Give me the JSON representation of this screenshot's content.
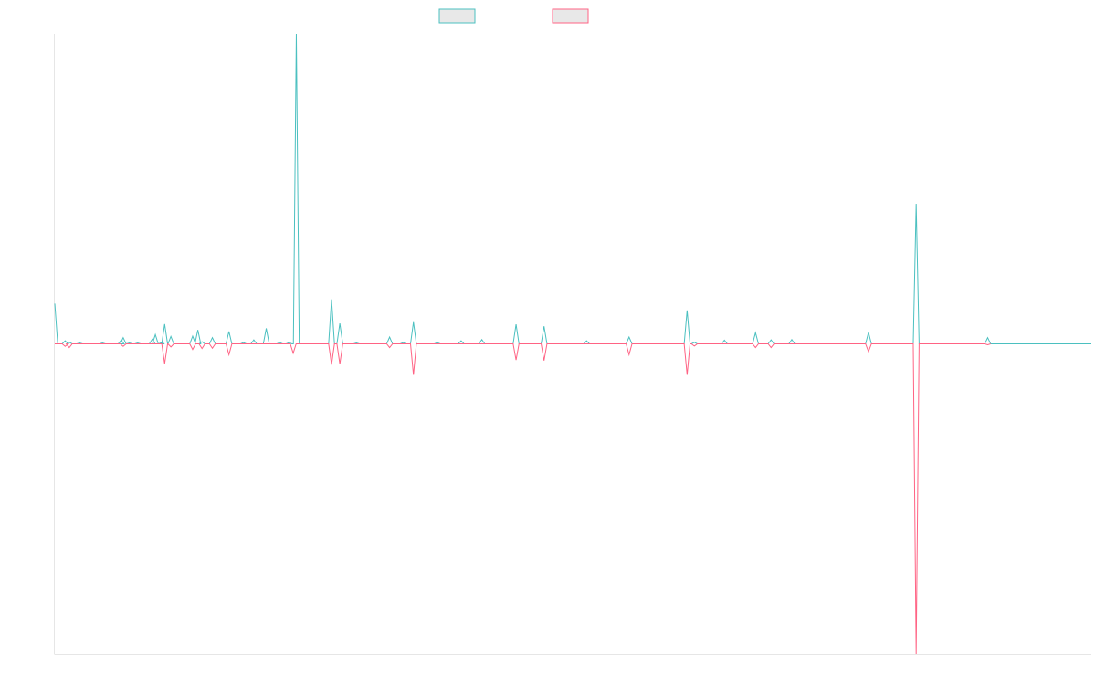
{
  "chart_data": {
    "type": "line",
    "title": "",
    "xlabel": "",
    "ylabel": "",
    "grid": false,
    "legend_position": "top-center",
    "xlim": [
      0,
      100
    ],
    "ylim": [
      -1,
      1
    ],
    "baseline": 0,
    "series": [
      {
        "color": "#4bc0c0",
        "fill": "#e8e8e8",
        "points": [
          [
            0,
            0.13
          ],
          [
            0.3,
            0
          ],
          [
            1.0,
            0.01
          ],
          [
            1.4,
            0.005
          ],
          [
            2.4,
            0.003
          ],
          [
            4.6,
            0.003
          ],
          [
            6.4,
            0.012
          ],
          [
            6.6,
            0.02
          ],
          [
            7.2,
            0.003
          ],
          [
            8.0,
            0.003
          ],
          [
            9.4,
            0.015
          ],
          [
            9.7,
            0.03
          ],
          [
            10.3,
            0.004
          ],
          [
            10.6,
            0.064
          ],
          [
            11.2,
            0.024
          ],
          [
            13.3,
            0.025
          ],
          [
            13.8,
            0.045
          ],
          [
            14.2,
            0.007
          ],
          [
            15.2,
            0.02
          ],
          [
            16.8,
            0.04
          ],
          [
            18.2,
            0.004
          ],
          [
            19.2,
            0.013
          ],
          [
            20.4,
            0.05
          ],
          [
            21.7,
            0.004
          ],
          [
            22.6,
            0.004
          ],
          [
            23.3,
            1.0
          ],
          [
            26.7,
            0.144
          ],
          [
            27.5,
            0.066
          ],
          [
            29.1,
            0.003
          ],
          [
            32.3,
            0.022
          ],
          [
            33.6,
            0.004
          ],
          [
            34.6,
            0.07
          ],
          [
            36.9,
            0.004
          ],
          [
            39.2,
            0.01
          ],
          [
            41.2,
            0.014
          ],
          [
            44.5,
            0.063
          ],
          [
            47.2,
            0.057
          ],
          [
            51.3,
            0.01
          ],
          [
            55.4,
            0.022
          ],
          [
            61.0,
            0.108
          ],
          [
            61.7,
            0.005
          ],
          [
            64.6,
            0.012
          ],
          [
            67.6,
            0.036
          ],
          [
            69.1,
            0.013
          ],
          [
            71.1,
            0.014
          ],
          [
            78.5,
            0.037
          ],
          [
            83.1,
            0.452
          ],
          [
            90.0,
            0.02
          ]
        ]
      },
      {
        "color": "#ff6384",
        "fill": "#e8e8e8",
        "points": [
          [
            1.0,
            -0.008
          ],
          [
            1.4,
            -0.012
          ],
          [
            6.6,
            -0.008
          ],
          [
            10.6,
            -0.064
          ],
          [
            11.2,
            -0.01
          ],
          [
            13.3,
            -0.018
          ],
          [
            14.2,
            -0.015
          ],
          [
            15.2,
            -0.014
          ],
          [
            16.8,
            -0.035
          ],
          [
            23.0,
            -0.03
          ],
          [
            26.7,
            -0.067
          ],
          [
            27.5,
            -0.065
          ],
          [
            32.3,
            -0.012
          ],
          [
            34.6,
            -0.1
          ],
          [
            44.5,
            -0.052
          ],
          [
            47.2,
            -0.054
          ],
          [
            55.4,
            -0.035
          ],
          [
            61.0,
            -0.1
          ],
          [
            61.7,
            -0.007
          ],
          [
            67.6,
            -0.012
          ],
          [
            69.1,
            -0.012
          ],
          [
            78.5,
            -0.025
          ],
          [
            83.1,
            -1.0
          ],
          [
            90.0,
            -0.003
          ]
        ]
      }
    ]
  }
}
